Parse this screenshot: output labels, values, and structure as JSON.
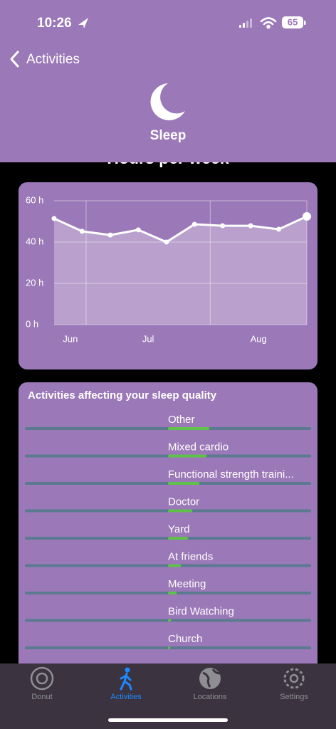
{
  "status_bar": {
    "time": "10:26",
    "battery": "65"
  },
  "nav": {
    "back": "Activities",
    "title": "Sleep"
  },
  "section_title": "Hours per week",
  "chart_data": {
    "type": "line",
    "x": [
      0,
      1,
      2,
      3,
      4,
      5,
      6,
      7,
      8,
      9
    ],
    "values": [
      51.4,
      45.2,
      43.4,
      45.9,
      40,
      48.6,
      47.9,
      47.9,
      46.2,
      52.4
    ],
    "color": "#ffffff",
    "xlim": [
      0,
      9
    ],
    "xticks": [
      {
        "value": 0.58,
        "label": "Jun"
      },
      {
        "value": 3.35,
        "label": "Jul"
      },
      {
        "value": 7.28,
        "label": "Aug"
      }
    ],
    "xgrid": [
      1.14,
      5.56
    ],
    "ylim": [
      0,
      60
    ],
    "yticks": [
      {
        "value": 0,
        "label": "0 h"
      },
      {
        "value": 20,
        "label": "20 h"
      },
      {
        "value": 40,
        "label": "40 h"
      },
      {
        "value": 60,
        "label": "60 h"
      }
    ],
    "grid": true
  },
  "activities": {
    "title": "Activities affecting your sleep quality",
    "items": [
      {
        "name": "Other",
        "value": 0.29
      },
      {
        "name": "Mixed cardio",
        "value": 0.27
      },
      {
        "name": "Functional strength traini...",
        "value": 0.22
      },
      {
        "name": "Doctor",
        "value": 0.17
      },
      {
        "name": "Yard",
        "value": 0.14
      },
      {
        "name": "At friends",
        "value": 0.09
      },
      {
        "name": "Meeting",
        "value": 0.06
      },
      {
        "name": "Bird Watching",
        "value": 0.02
      },
      {
        "name": "Church",
        "value": 0.01
      }
    ]
  },
  "tabs": [
    "Donut",
    "Activities",
    "Locations",
    "Settings"
  ],
  "selected_tab": 1
}
